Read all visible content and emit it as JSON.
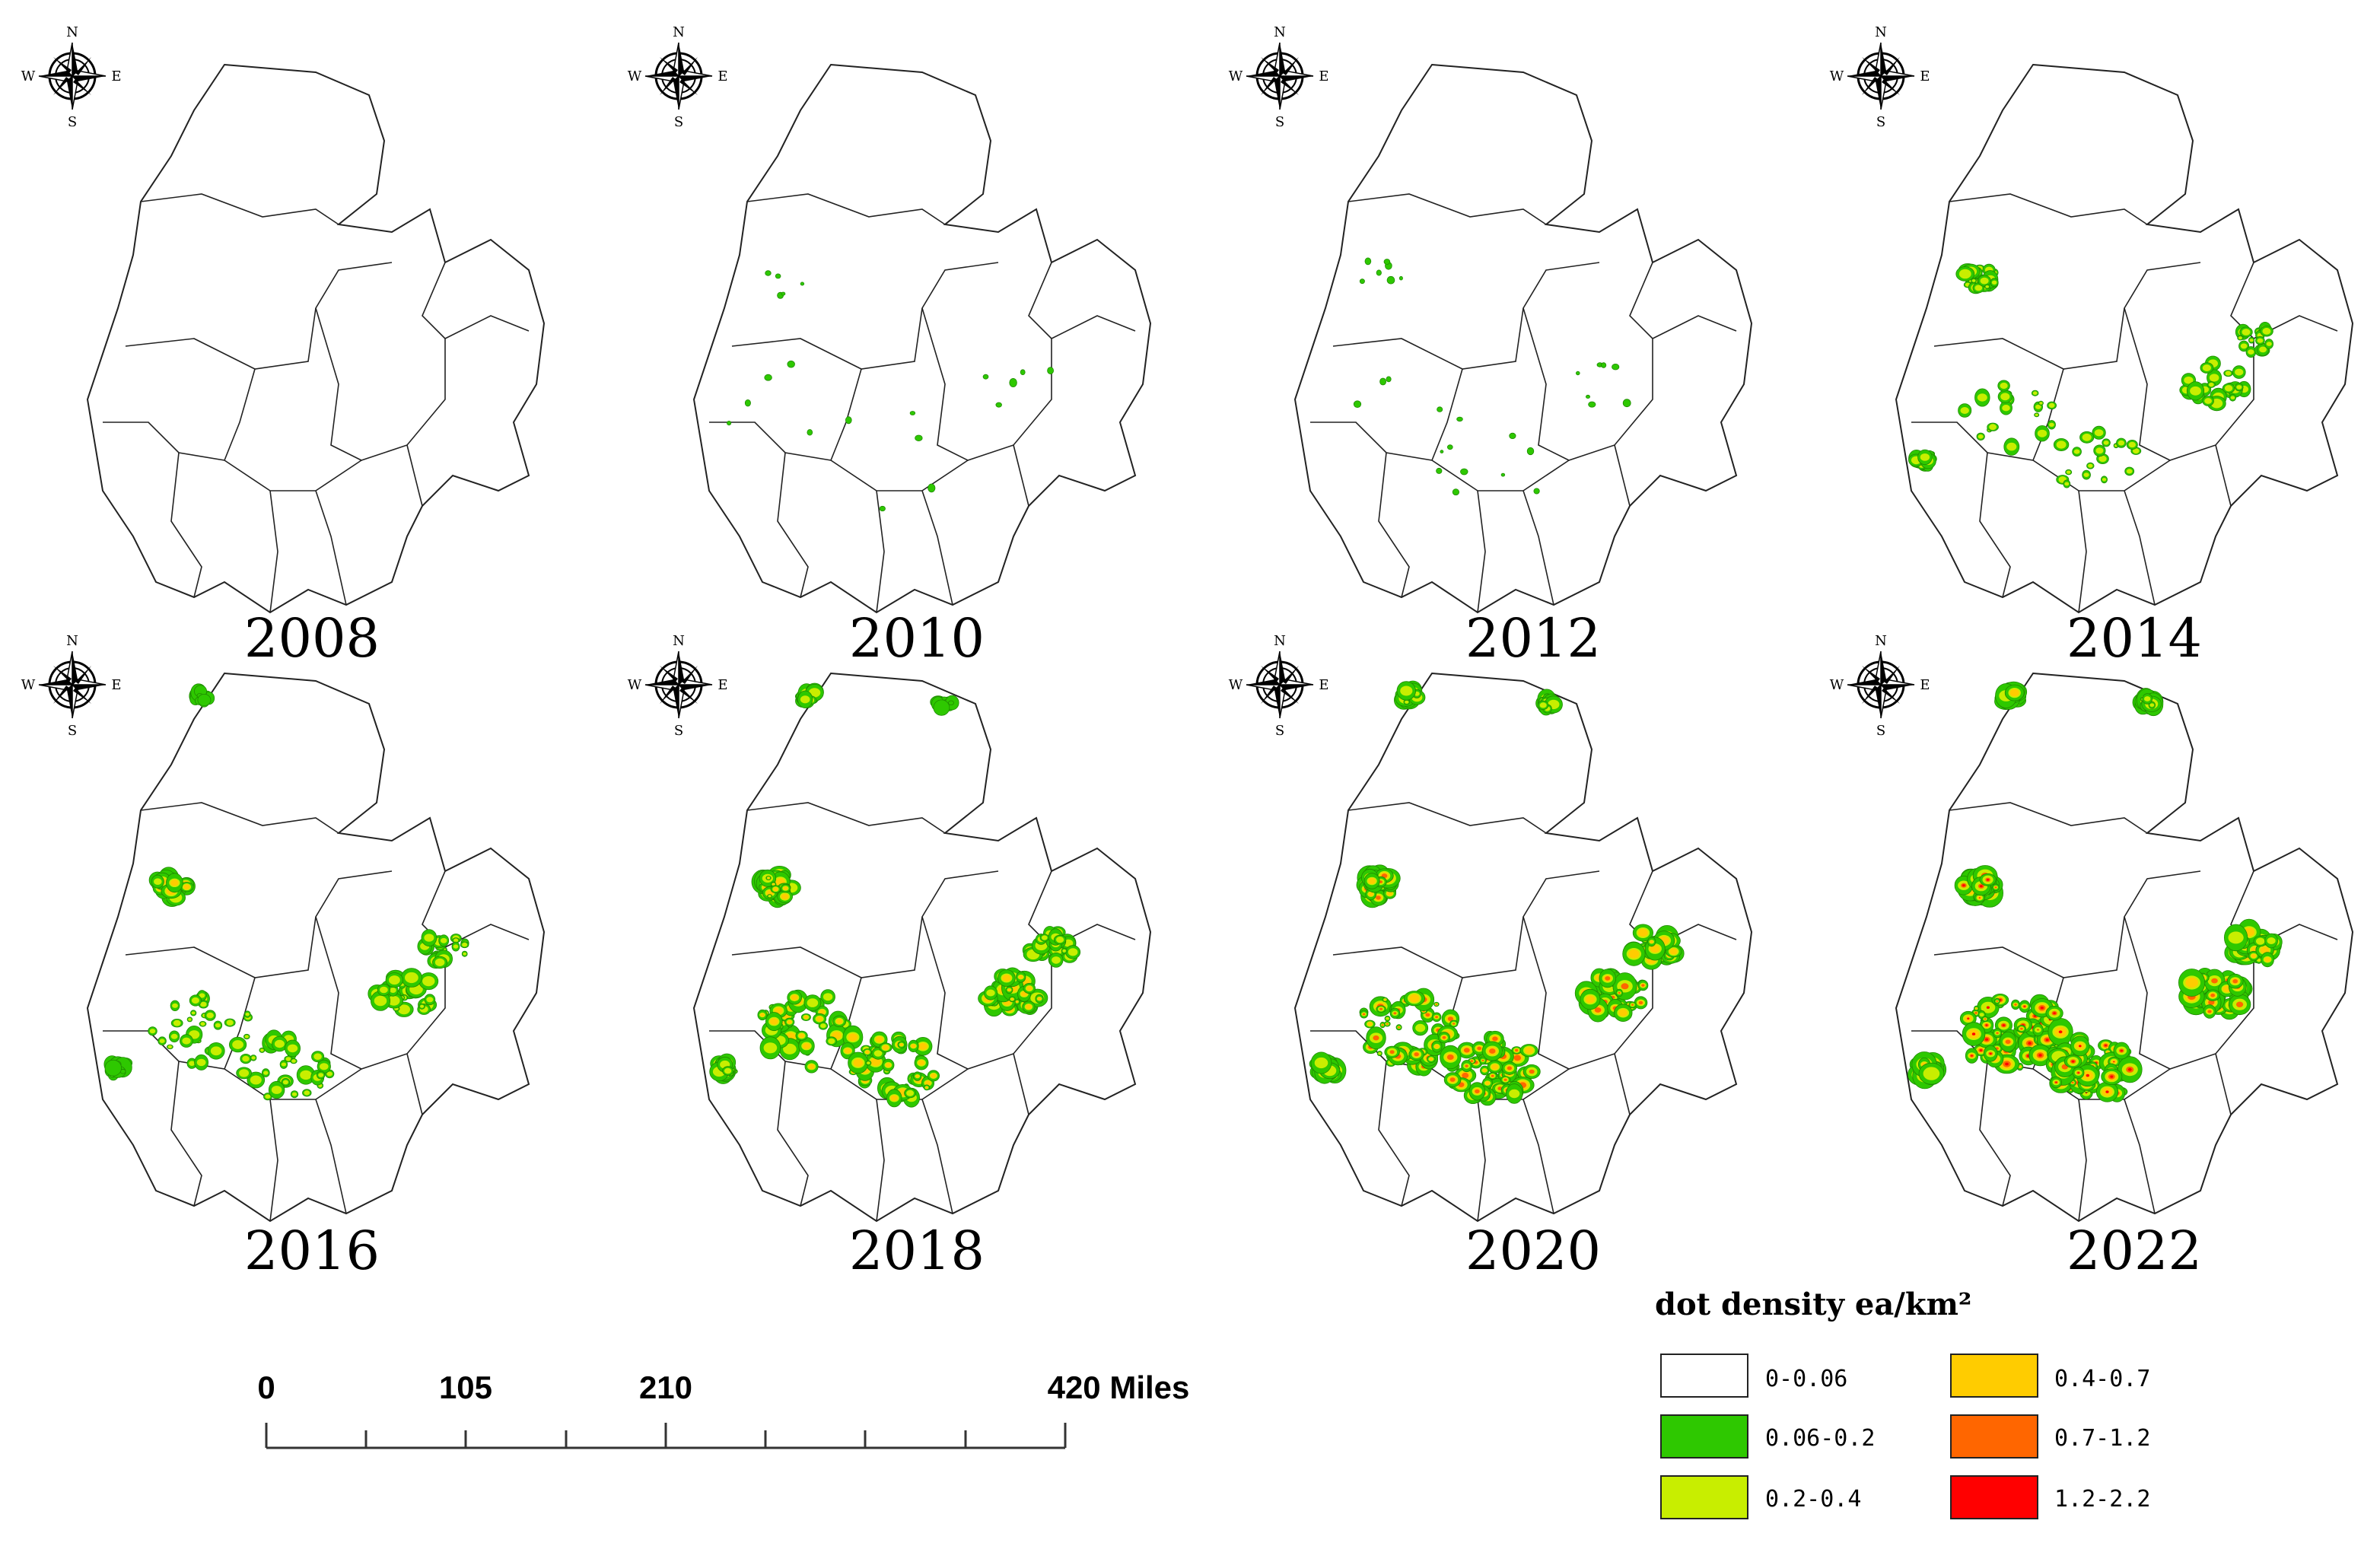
{
  "panels": [
    {
      "year": "2008",
      "level": 0
    },
    {
      "year": "2010",
      "level": 1
    },
    {
      "year": "2012",
      "level": 2
    },
    {
      "year": "2014",
      "level": 3
    },
    {
      "year": "2016",
      "level": 4
    },
    {
      "year": "2018",
      "level": 5
    },
    {
      "year": "2020",
      "level": 6
    },
    {
      "year": "2022",
      "level": 7
    }
  ],
  "compass": {
    "n": "N",
    "s": "S",
    "e": "E",
    "w": "W"
  },
  "legend": {
    "title": "dot density ea/km²",
    "classes": [
      {
        "label": "0-0.06",
        "color": "#ffffff"
      },
      {
        "label": "0.06-0.2",
        "color": "#2ec800"
      },
      {
        "label": "0.2-0.4",
        "color": "#c8ee00"
      },
      {
        "label": "0.4-0.7",
        "color": "#ffcc00"
      },
      {
        "label": "0.7-1.2",
        "color": "#ff6600"
      },
      {
        "label": "1.2-2.2",
        "color": "#ff0000"
      }
    ]
  },
  "scale_bar": {
    "labels": [
      "0",
      "105",
      "210",
      "420 Miles"
    ],
    "values": [
      0,
      105,
      210,
      420
    ]
  }
}
